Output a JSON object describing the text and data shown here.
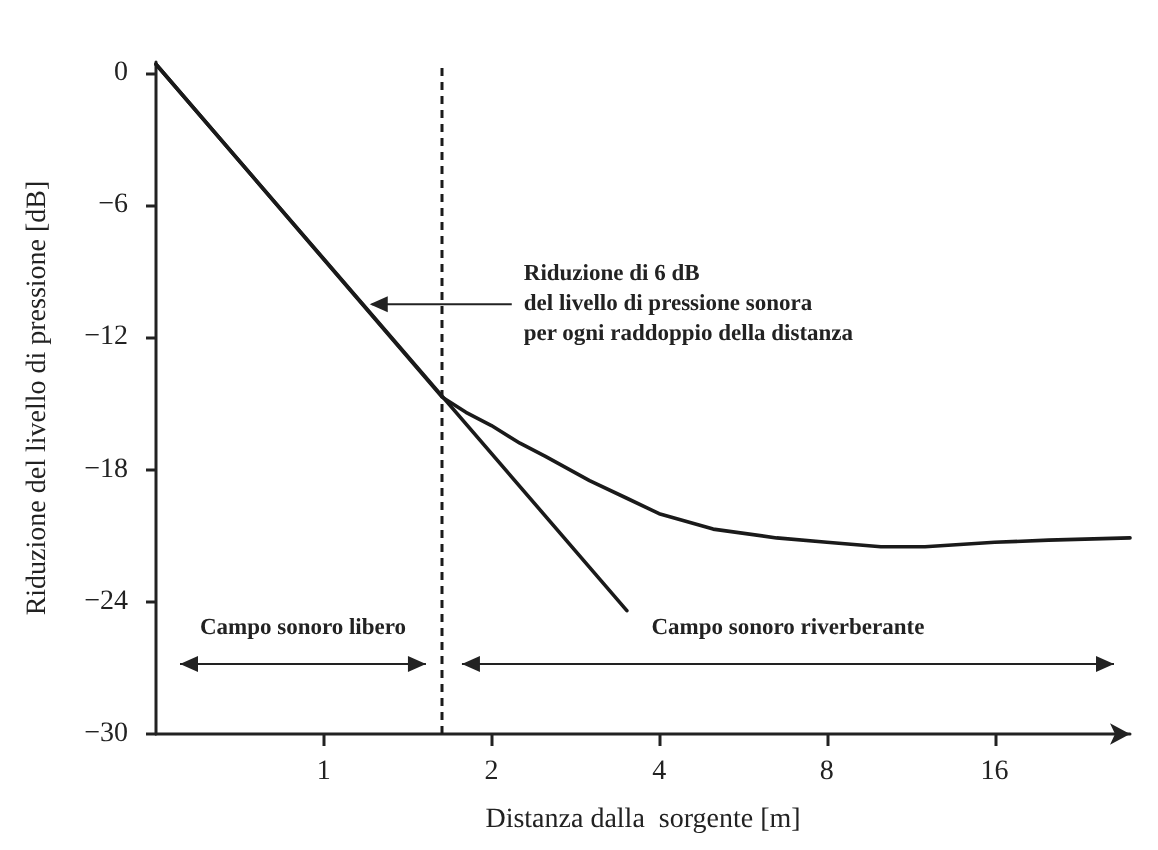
{
  "chart_data": {
    "type": "line",
    "xlabel": "Distanza dalla  sorgente [m]",
    "ylabel": "Riduzione del livello di pressione [dB]",
    "log": "x",
    "xlim": [
      0.5,
      28
    ],
    "xticks": [
      1,
      2,
      4,
      8,
      16
    ],
    "ylim": [
      -30,
      0.5
    ],
    "yticks": [
      0,
      -6,
      -12,
      -18,
      -24,
      -30
    ],
    "series": [
      {
        "color": "#1a1a1a",
        "x": [
          0.5,
          3.5
        ],
        "values": [
          0.4,
          -24.4
        ]
      },
      {
        "color": "#1a1a1a",
        "x": [
          0.5,
          1.63,
          1.8,
          2,
          2.25,
          2.5,
          3,
          3.5,
          4,
          5,
          6.5,
          8,
          10,
          12,
          16,
          20,
          28
        ],
        "values": [
          0.4,
          -14.7,
          -15.4,
          -16,
          -16.8,
          -17.4,
          -18.5,
          -19.3,
          -20,
          -20.7,
          -21.1,
          -21.3,
          -21.5,
          -21.5,
          -21.3,
          -21.2,
          -21.1
        ]
      }
    ],
    "ref_lines": [
      {
        "axis": "x",
        "value": 1.63,
        "color": "#1a1a1a",
        "line_style": "dashed"
      }
    ],
    "annotations": [
      {
        "text": "Riduzione di 6 dB\ndel livello di pressione sonora\nper ogni raddoppio della distanza",
        "x": 1.18,
        "y": -10.5
      },
      "Campo sonoro libero",
      "Campo sonoro riverberante"
    ],
    "grid": false,
    "marker": "none",
    "line_style": "solid"
  }
}
